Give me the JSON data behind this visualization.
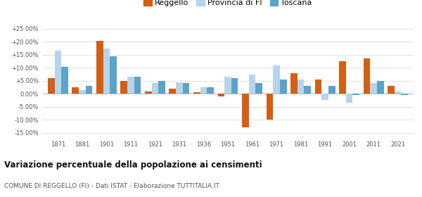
{
  "years": [
    1871,
    1881,
    1901,
    1911,
    1921,
    1931,
    1936,
    1951,
    1961,
    1971,
    1981,
    1991,
    2001,
    2011,
    2021
  ],
  "reggello": [
    6.0,
    2.5,
    20.5,
    5.0,
    1.0,
    2.0,
    0.5,
    -1.0,
    -13.0,
    -10.0,
    8.0,
    5.5,
    12.5,
    13.5,
    3.0
  ],
  "provincia_fi": [
    16.5,
    1.5,
    17.5,
    6.5,
    4.0,
    4.5,
    2.5,
    6.5,
    7.5,
    11.0,
    5.5,
    -2.5,
    -3.5,
    4.0,
    1.0
  ],
  "toscana": [
    10.5,
    3.0,
    14.5,
    6.5,
    5.0,
    4.0,
    2.5,
    6.0,
    4.0,
    5.5,
    3.0,
    3.0,
    -0.5,
    5.0,
    -0.5
  ],
  "color_reggello": "#d45f13",
  "color_provincia": "#b8d4ea",
  "color_toscana": "#5ba3c9",
  "ylim": [
    -17,
    27
  ],
  "yticks": [
    -15,
    -10,
    -5,
    0,
    5,
    10,
    15,
    20,
    25
  ],
  "title": "Variazione percentuale della popolazione ai censimenti",
  "subtitle": "COMUNE DI REGGELLO (FI) - Dati ISTAT - Elaborazione TUTTITALIA.IT",
  "legend_labels": [
    "Reggello",
    "Provincia di FI",
    "Toscana"
  ],
  "bar_width": 0.28
}
